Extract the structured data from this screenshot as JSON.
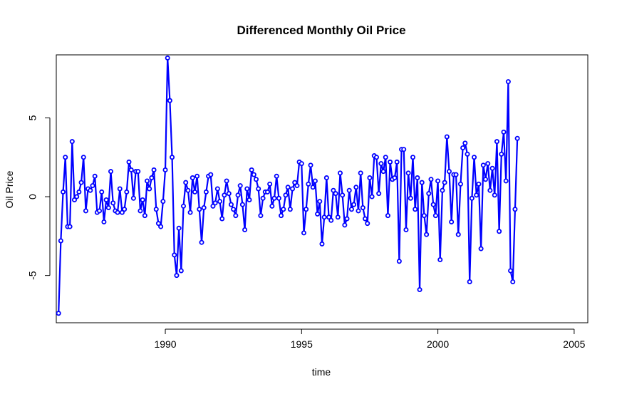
{
  "chart_data": {
    "type": "line",
    "title": "Differenced Monthly Oil Price",
    "xlabel": "time",
    "ylabel": "Oil Price",
    "xlim": [
      1986.0,
      2005.5
    ],
    "ylim": [
      -8.0,
      9.0
    ],
    "x_ticks": [
      1990,
      1995,
      2000,
      2005
    ],
    "x_tick_labels": [
      "1990",
      "1995",
      "2000",
      "2005"
    ],
    "y_ticks": [
      -5,
      0,
      5
    ],
    "y_tick_labels": [
      "-5",
      "0",
      "5"
    ],
    "grid": false,
    "line_color": "#0000ff",
    "x_start": 1986.083,
    "x_step": 0.08333,
    "series": [
      {
        "values": [
          -7.4,
          -2.8,
          0.3,
          2.5,
          -1.9,
          -1.9,
          3.5,
          -0.2,
          0.0,
          0.3,
          0.9,
          2.5,
          -0.9,
          0.5,
          0.4,
          0.7,
          1.3,
          -1.0,
          -0.9,
          0.3,
          -1.6,
          -0.2,
          -0.7,
          1.6,
          -0.4,
          -0.9,
          -1.0,
          0.5,
          -1.0,
          -0.8,
          0.3,
          2.2,
          1.7,
          -0.1,
          1.6,
          1.6,
          -0.9,
          -0.2,
          -1.2,
          1.0,
          0.5,
          1.2,
          1.7,
          -0.8,
          -1.7,
          -1.9,
          -0.3,
          1.7,
          8.8,
          6.1,
          2.5,
          -3.7,
          -5.0,
          -2.0,
          -4.7,
          -0.6,
          0.9,
          0.4,
          -1.0,
          1.2,
          0.3,
          1.3,
          -0.8,
          -2.9,
          -0.7,
          0.3,
          1.3,
          1.4,
          -0.6,
          -0.4,
          0.5,
          -0.3,
          -1.4,
          0.1,
          1.0,
          0.2,
          -0.5,
          -0.8,
          -1.2,
          0.1,
          0.7,
          -0.5,
          -2.1,
          0.5,
          -0.2,
          1.7,
          1.4,
          1.1,
          0.5,
          -1.2,
          -0.1,
          0.3,
          0.3,
          0.8,
          -0.6,
          -0.1,
          1.3,
          -0.1,
          -1.2,
          -0.8,
          0.1,
          0.6,
          -0.8,
          0.5,
          0.9,
          0.7,
          2.2,
          2.1,
          -2.3,
          -0.8,
          0.8,
          2.0,
          0.6,
          1.0,
          -1.1,
          -0.3,
          -3.0,
          -1.3,
          1.2,
          -1.3,
          -1.5,
          0.4,
          0.2,
          -1.3,
          1.5,
          0.1,
          -1.8,
          -1.4,
          0.4,
          -0.8,
          -0.5,
          0.6,
          -0.9,
          1.5,
          -0.7,
          -1.4,
          -1.7,
          1.2,
          0.0,
          2.6,
          2.5,
          0.2,
          2.1,
          1.6,
          2.5,
          -1.2,
          2.2,
          1.1,
          1.2,
          2.2,
          -4.1,
          3.0,
          3.0,
          -2.1,
          1.5,
          -0.1,
          2.5,
          -0.8,
          1.2,
          -5.9,
          0.9,
          -1.2,
          -2.4,
          0.2,
          1.1,
          -0.5,
          -1.2,
          1.0,
          -4.0,
          0.4,
          0.9,
          3.8,
          1.6,
          -1.6,
          1.4,
          1.4,
          -2.4,
          0.8,
          3.1,
          3.4,
          2.7,
          -5.4,
          -0.1,
          2.5,
          0.1,
          0.8,
          -3.3,
          2.0,
          1.1,
          2.1,
          0.4,
          1.8,
          0.1,
          3.5,
          -2.2,
          2.7,
          4.1,
          1.0,
          7.3,
          -4.7,
          -5.4,
          -0.8,
          3.7
        ]
      }
    ]
  }
}
